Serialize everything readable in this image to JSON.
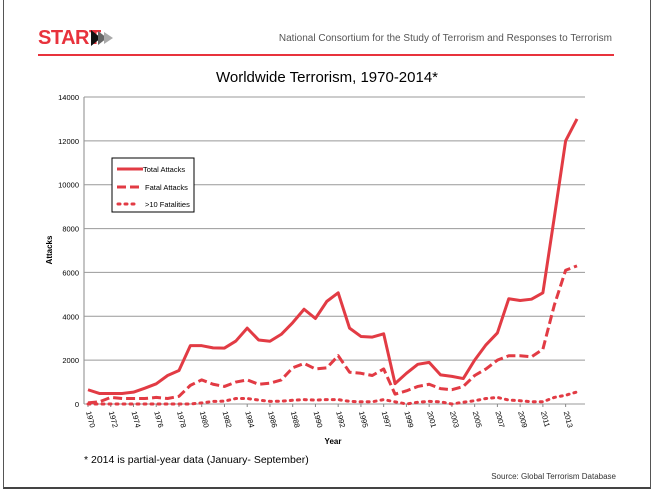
{
  "header": {
    "logo": "START",
    "org": "National Consortium for the Study of Terrorism and Responses to Terrorism"
  },
  "footnote": "* 2014 is partial-year data (January- September)",
  "source": "Source: Global Terrorism Database",
  "colors": {
    "accent": "#e8323c",
    "line": "#e23b44"
  },
  "chart_data": {
    "type": "line",
    "title": "Worldwide Terrorism, 1970-2014*",
    "xlabel": "Year",
    "ylabel": "Attacks",
    "ylim": [
      0,
      14000
    ],
    "yticks": [
      0,
      2000,
      4000,
      6000,
      8000,
      10000,
      12000,
      14000
    ],
    "xticks": [
      "1970",
      "1972",
      "1974",
      "1976",
      "1978",
      "1980",
      "1982",
      "1984",
      "1986",
      "1988",
      "1990",
      "1992",
      "1995",
      "1997",
      "1999",
      "2001",
      "2003",
      "2005",
      "2007",
      "2009",
      "2011",
      "2013"
    ],
    "grid": true,
    "legend": "upper-left",
    "x": [
      1970,
      1971,
      1972,
      1973,
      1974,
      1975,
      1976,
      1977,
      1978,
      1979,
      1980,
      1981,
      1982,
      1983,
      1984,
      1985,
      1986,
      1987,
      1988,
      1989,
      1990,
      1991,
      1992,
      1994,
      1995,
      1996,
      1997,
      1998,
      1999,
      2000,
      2001,
      2002,
      2003,
      2004,
      2005,
      2006,
      2007,
      2008,
      2009,
      2010,
      2011,
      2012,
      2013,
      2014
    ],
    "series": [
      {
        "name": "Total Attacks",
        "style": "solid",
        "values": [
          650,
          480,
          480,
          480,
          540,
          720,
          920,
          1300,
          1530,
          2660,
          2660,
          2560,
          2550,
          2870,
          3460,
          2920,
          2860,
          3180,
          3710,
          4320,
          3900,
          4680,
          5070,
          3460,
          3080,
          3050,
          3200,
          930,
          1400,
          1810,
          1900,
          1330,
          1260,
          1160,
          2000,
          2700,
          3240,
          4800,
          4720,
          4780,
          5070,
          8500,
          12000,
          13000
        ]
      },
      {
        "name": "Fatal Attacks",
        "style": "dash",
        "values": [
          50,
          100,
          300,
          250,
          250,
          250,
          300,
          250,
          350,
          850,
          1100,
          900,
          800,
          1000,
          1100,
          900,
          950,
          1100,
          1650,
          1850,
          1600,
          1650,
          2200,
          1450,
          1400,
          1300,
          1600,
          450,
          600,
          800,
          900,
          700,
          650,
          800,
          1300,
          1600,
          2000,
          2200,
          2200,
          2150,
          2500,
          4500,
          6100,
          6300
        ]
      },
      {
        "name": ">10 Fatalities",
        "style": "dot",
        "values": [
          0,
          0,
          0,
          0,
          0,
          0,
          0,
          0,
          0,
          0,
          50,
          120,
          130,
          250,
          250,
          180,
          120,
          130,
          170,
          200,
          180,
          200,
          200,
          120,
          100,
          100,
          200,
          100,
          0,
          80,
          120,
          100,
          0,
          80,
          150,
          250,
          300,
          180,
          150,
          100,
          100,
          300,
          400,
          550
        ]
      }
    ]
  }
}
